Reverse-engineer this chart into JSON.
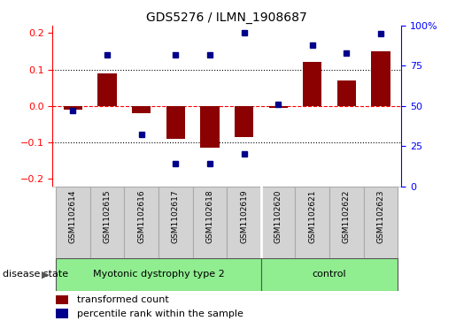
{
  "title": "GDS5276 / ILMN_1908687",
  "samples": [
    "GSM1102614",
    "GSM1102615",
    "GSM1102616",
    "GSM1102617",
    "GSM1102618",
    "GSM1102619",
    "GSM1102620",
    "GSM1102621",
    "GSM1102622",
    "GSM1102623"
  ],
  "red_bars": [
    -0.01,
    0.09,
    -0.02,
    -0.09,
    -0.115,
    -0.085,
    -0.005,
    0.12,
    0.07,
    0.15
  ],
  "blue_dots": [
    0.47,
    0.82,
    0.32,
    0.14,
    0.14,
    0.2,
    0.51,
    0.88,
    0.83,
    0.95
  ],
  "group1_samples": 6,
  "group1_label": "Myotonic dystrophy type 2",
  "group2_label": "control",
  "ylim_left": [
    -0.22,
    0.22
  ],
  "yticks_left": [
    -0.2,
    -0.1,
    0.0,
    0.1,
    0.2
  ],
  "yticks_right_vals": [
    0.0,
    0.25,
    0.5,
    0.75,
    1.0
  ],
  "yticks_right_labels": [
    "0",
    "25",
    "50",
    "75",
    "100%"
  ],
  "bar_color": "#8B0000",
  "dot_color": "#00008B",
  "background_color": "#ffffff",
  "green_color": "#90EE90",
  "gray_color": "#d3d3d3",
  "disease_state_label": "disease state",
  "legend_red": "transformed count",
  "legend_blue": "percentile rank within the sample"
}
